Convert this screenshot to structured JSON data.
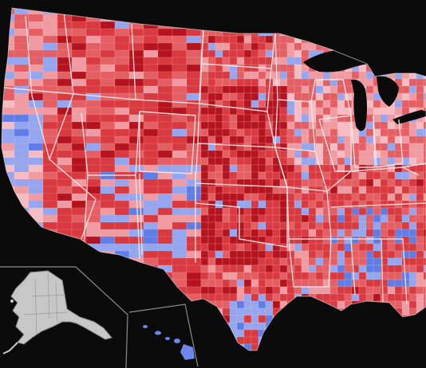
{
  "map": {
    "subject": "us-county-choropleth",
    "colors": {
      "background": "#0b0b0b",
      "strong_red": "#b5141f",
      "red": "#d83a3f",
      "medium_red": "#e35f63",
      "light_red": "#f09aa2",
      "pink": "#f6bcc3",
      "light_blue": "#93a6ef",
      "blue": "#5f7de8",
      "strong_blue": "#3647d1",
      "state_border": "#f3e7e7",
      "inset_land": "#c7c7c7",
      "inset_border": "#8b8b8b"
    }
  }
}
